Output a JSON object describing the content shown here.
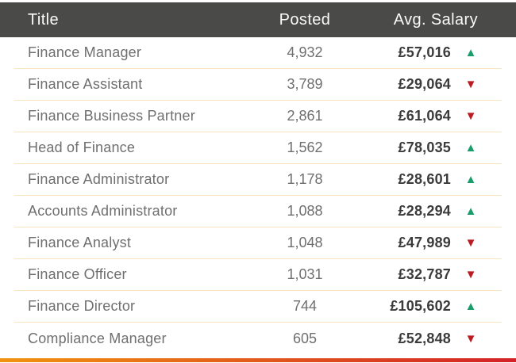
{
  "table": {
    "columns": {
      "title": "Title",
      "posted": "Posted",
      "salary": "Avg. Salary"
    },
    "rows": [
      {
        "title": "Finance Manager",
        "posted": "4,932",
        "salary": "£57,016",
        "trend": "up"
      },
      {
        "title": "Finance Assistant",
        "posted": "3,789",
        "salary": "£29,064",
        "trend": "down"
      },
      {
        "title": "Finance Business Partner",
        "posted": "2,861",
        "salary": "£61,064",
        "trend": "down"
      },
      {
        "title": "Head of Finance",
        "posted": "1,562",
        "salary": "£78,035",
        "trend": "up"
      },
      {
        "title": "Finance Administrator",
        "posted": "1,178",
        "salary": "£28,601",
        "trend": "up"
      },
      {
        "title": "Accounts Administrator",
        "posted": "1,088",
        "salary": "£28,294",
        "trend": "up"
      },
      {
        "title": "Finance Analyst",
        "posted": "1,048",
        "salary": "£47,989",
        "trend": "down"
      },
      {
        "title": "Finance Officer",
        "posted": "1,031",
        "salary": "£32,787",
        "trend": "down"
      },
      {
        "title": "Finance Director",
        "posted": "744",
        "salary": "£105,602",
        "trend": "up"
      },
      {
        "title": "Compliance Manager",
        "posted": "605",
        "salary": "£52,848",
        "trend": "down"
      }
    ]
  },
  "icons": {
    "up": "▲",
    "down": "▼"
  },
  "colors": {
    "header_bg": "#4a4a48",
    "header_text": "#fafafa",
    "row_text": "#6f6f6f",
    "salary_text": "#3b3b3b",
    "separator": "#fae3c1",
    "up": "#189d6b",
    "down": "#bb1b21",
    "footer_gradient_start": "#f1930f",
    "footer_gradient_end": "#d42027"
  },
  "chart_data": {
    "type": "table",
    "title": "",
    "columns": [
      "Title",
      "Posted",
      "Avg. Salary",
      "Trend"
    ],
    "rows": [
      [
        "Finance Manager",
        4932,
        "£57,016",
        "up"
      ],
      [
        "Finance Assistant",
        3789,
        "£29,064",
        "down"
      ],
      [
        "Finance Business Partner",
        2861,
        "£61,064",
        "down"
      ],
      [
        "Head of Finance",
        1562,
        "£78,035",
        "up"
      ],
      [
        "Finance Administrator",
        1178,
        "£28,601",
        "up"
      ],
      [
        "Accounts Administrator",
        1088,
        "£28,294",
        "up"
      ],
      [
        "Finance Analyst",
        1048,
        "£47,989",
        "down"
      ],
      [
        "Finance Officer",
        1031,
        "£32,787",
        "down"
      ],
      [
        "Finance Director",
        744,
        "£105,602",
        "up"
      ],
      [
        "Compliance Manager",
        605,
        "£52,848",
        "down"
      ]
    ]
  }
}
